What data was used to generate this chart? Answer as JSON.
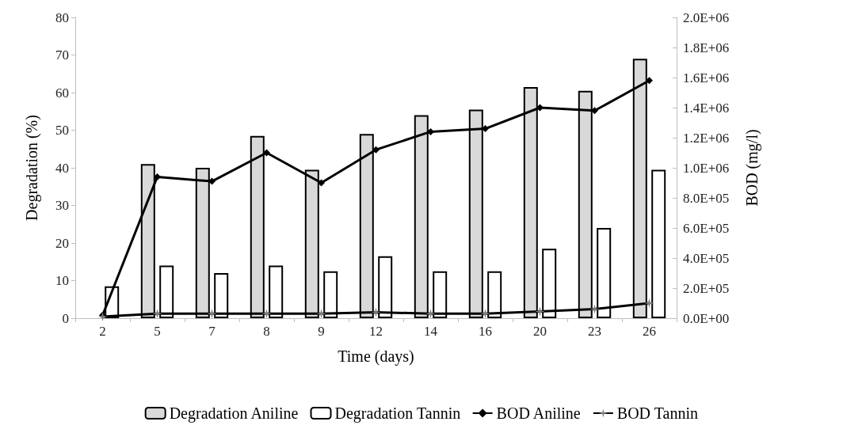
{
  "chart_data": {
    "type": "bar",
    "xlabel": "Time (days)",
    "ylabel": "Degradation (%)",
    "y2label": "BOD (mg/l)",
    "categories": [
      "2",
      "5",
      "7",
      "8",
      "9",
      "12",
      "14",
      "16",
      "20",
      "23",
      "26"
    ],
    "series": [
      {
        "name": "Degradation Aniline",
        "color": "#d9d9d9",
        "values": [
          null,
          41,
          40,
          48.5,
          39.5,
          49,
          54,
          55.5,
          61.5,
          60.5,
          69
        ]
      },
      {
        "name": "Degradation Tannin",
        "color": "#ffffff",
        "values": [
          8.5,
          14,
          12,
          14,
          12.5,
          16.5,
          12.5,
          12.5,
          18.5,
          24,
          39.5
        ]
      },
      {
        "name": "BOD Aniline",
        "type": "line",
        "axis": "y2",
        "marker": "diamond",
        "color": "#000000",
        "values": [
          20000,
          940000,
          910000,
          1100000,
          900000,
          1120000,
          1240000,
          1260000,
          1400000,
          1380000,
          1580000
        ]
      },
      {
        "name": "BOD Tannin",
        "type": "line",
        "axis": "y2",
        "marker": "star",
        "color": "#808080",
        "values": [
          10000,
          30000,
          30000,
          30000,
          30000,
          40000,
          30000,
          30000,
          45000,
          60000,
          100000
        ]
      }
    ],
    "ylim": [
      0,
      80
    ],
    "yticks": [
      0,
      10,
      20,
      30,
      40,
      50,
      60,
      70,
      80
    ],
    "y2lim": [
      0,
      2000000
    ],
    "y2ticks": [
      {
        "value": 0,
        "label": "0.0E+00"
      },
      {
        "value": 200000,
        "label": "2.0E+05"
      },
      {
        "value": 400000,
        "label": "4.0E+05"
      },
      {
        "value": 600000,
        "label": "6.0E+05"
      },
      {
        "value": 800000,
        "label": "8.0E+05"
      },
      {
        "value": 1000000,
        "label": "1.0E+06"
      },
      {
        "value": 1200000,
        "label": "1.2E+06"
      },
      {
        "value": 1400000,
        "label": "1.4E+06"
      },
      {
        "value": 1600000,
        "label": "1.6E+06"
      },
      {
        "value": 1800000,
        "label": "1.8E+06"
      },
      {
        "value": 2000000,
        "label": "2.0E+06"
      }
    ],
    "grid": false,
    "legend": "bottom"
  }
}
